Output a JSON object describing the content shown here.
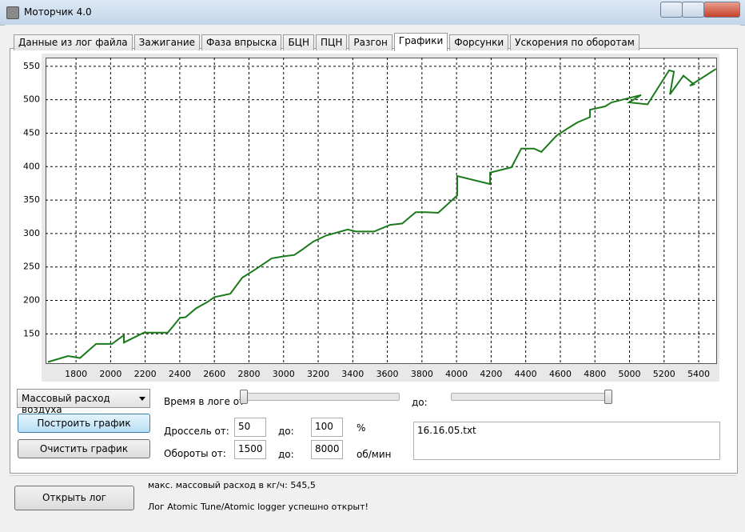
{
  "window": {
    "title": "Моторчик 4.0"
  },
  "tabs": [
    "Данные из лог файла",
    "Зажигание",
    "Фаза впрыска",
    "БЦН",
    "ПЦН",
    "Разгон",
    "Графики",
    "Форсунки",
    "Ускорения по оборотам"
  ],
  "chart_data": {
    "type": "line",
    "x": [
      1638,
      1754,
      1823,
      1916,
      2008,
      2077,
      2077,
      2193,
      2331,
      2401,
      2433,
      2493,
      2562,
      2600,
      2692,
      2761,
      2840,
      2932,
      3002,
      3062,
      3108,
      3172,
      3246,
      3371,
      3418,
      3524,
      3616,
      3686,
      3764,
      3824,
      3894,
      4004,
      4004,
      4194,
      4194,
      4318,
      4374,
      4448,
      4490,
      4577,
      4642,
      4698,
      4771,
      4771,
      4859,
      4896,
      5067,
      4997,
      5104,
      5229,
      5257,
      5234,
      5312,
      5372,
      5349,
      5500
    ],
    "values": [
      108,
      117,
      114,
      135,
      135,
      148,
      137,
      152,
      152,
      174,
      175,
      188,
      198,
      205,
      210,
      234,
      247,
      263,
      266,
      268,
      276,
      288,
      297,
      306,
      303,
      303,
      313,
      315,
      332,
      332,
      331,
      357,
      386,
      374,
      391,
      399,
      427,
      427,
      422,
      446,
      457,
      466,
      474,
      485,
      490,
      496,
      507,
      496,
      493,
      544,
      542,
      508,
      536,
      523,
      521,
      546
    ],
    "color": "#1a7a1a",
    "xlim": [
      1624,
      5506
    ],
    "ylim": [
      105,
      563
    ],
    "xticks": [
      1800,
      2000,
      2200,
      2400,
      2600,
      2800,
      3000,
      3200,
      3400,
      3600,
      3800,
      4000,
      4200,
      4400,
      4600,
      4800,
      5000,
      5200,
      5400
    ],
    "yticks": [
      150,
      200,
      250,
      300,
      350,
      400,
      450,
      500,
      550
    ],
    "grid": true
  },
  "controls": {
    "parameter": "Массовый расход воздуха",
    "build_button": "Построить график",
    "clear_button": "Очистить график",
    "time_from_label": "Время в логе от",
    "time_to_label": "до:",
    "throttle_label": "Дроссель от:",
    "throttle_from": "50",
    "throttle_to_label": "до:",
    "throttle_to": "100",
    "throttle_unit": "%",
    "rpm_label": "Обороты от:",
    "rpm_from": "1500",
    "rpm_to_label": "до:",
    "rpm_to": "8000",
    "rpm_unit": "об/мин",
    "file_list": "16.16.05.txt"
  },
  "footer": {
    "open_button": "Открыть лог",
    "max_flow": "макс. массовый расход в кг/ч: 545,5",
    "status": "Лог Atomic Tune/Atomic logger успешно открыт!"
  }
}
